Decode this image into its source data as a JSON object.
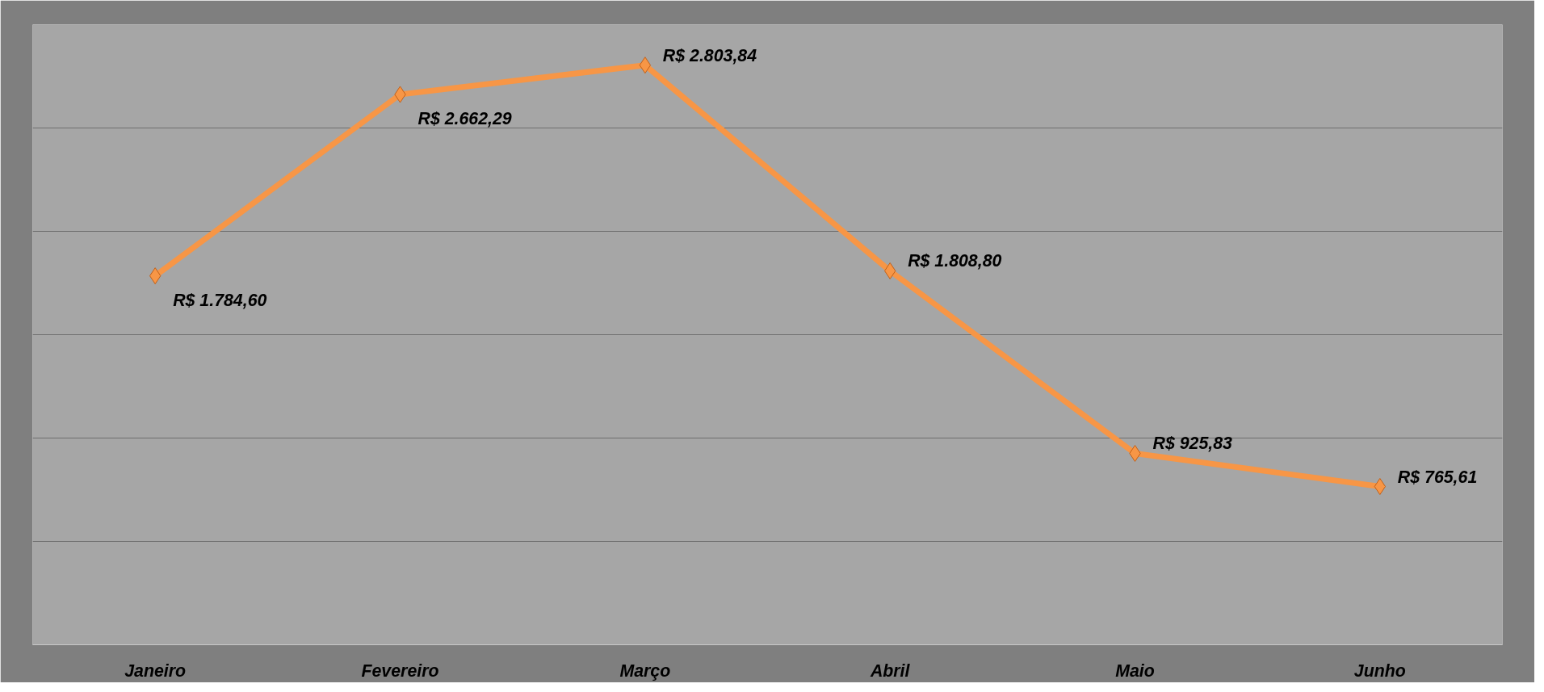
{
  "chart_data": {
    "type": "line",
    "categories": [
      "Janeiro",
      "Fevereiro",
      "Março",
      "Abril",
      "Maio",
      "Junho"
    ],
    "series": [
      {
        "color": "#f79646",
        "values": [
          1784.6,
          2662.29,
          2803.84,
          1808.8,
          925.83,
          765.61
        ],
        "value_labels": [
          "R$ 1.784,60",
          "R$ 2.662,29",
          "R$ 2.803,84",
          "R$ 1.808,80",
          "R$ 925,83",
          "R$ 765,61"
        ]
      }
    ],
    "ylim": [
      0,
      3000
    ],
    "yticks": [
      {
        "value": 0,
        "label": null
      },
      {
        "value": 500,
        "label": null
      },
      {
        "value": 1000,
        "label": null
      },
      {
        "value": 1500,
        "label": null
      },
      {
        "value": 2000,
        "label": null
      },
      {
        "value": 2500,
        "label": null
      },
      {
        "value": 3000,
        "label": null
      }
    ],
    "grid": "y",
    "tick_labels": "x",
    "marker": "diamond",
    "line_style": "solid"
  }
}
